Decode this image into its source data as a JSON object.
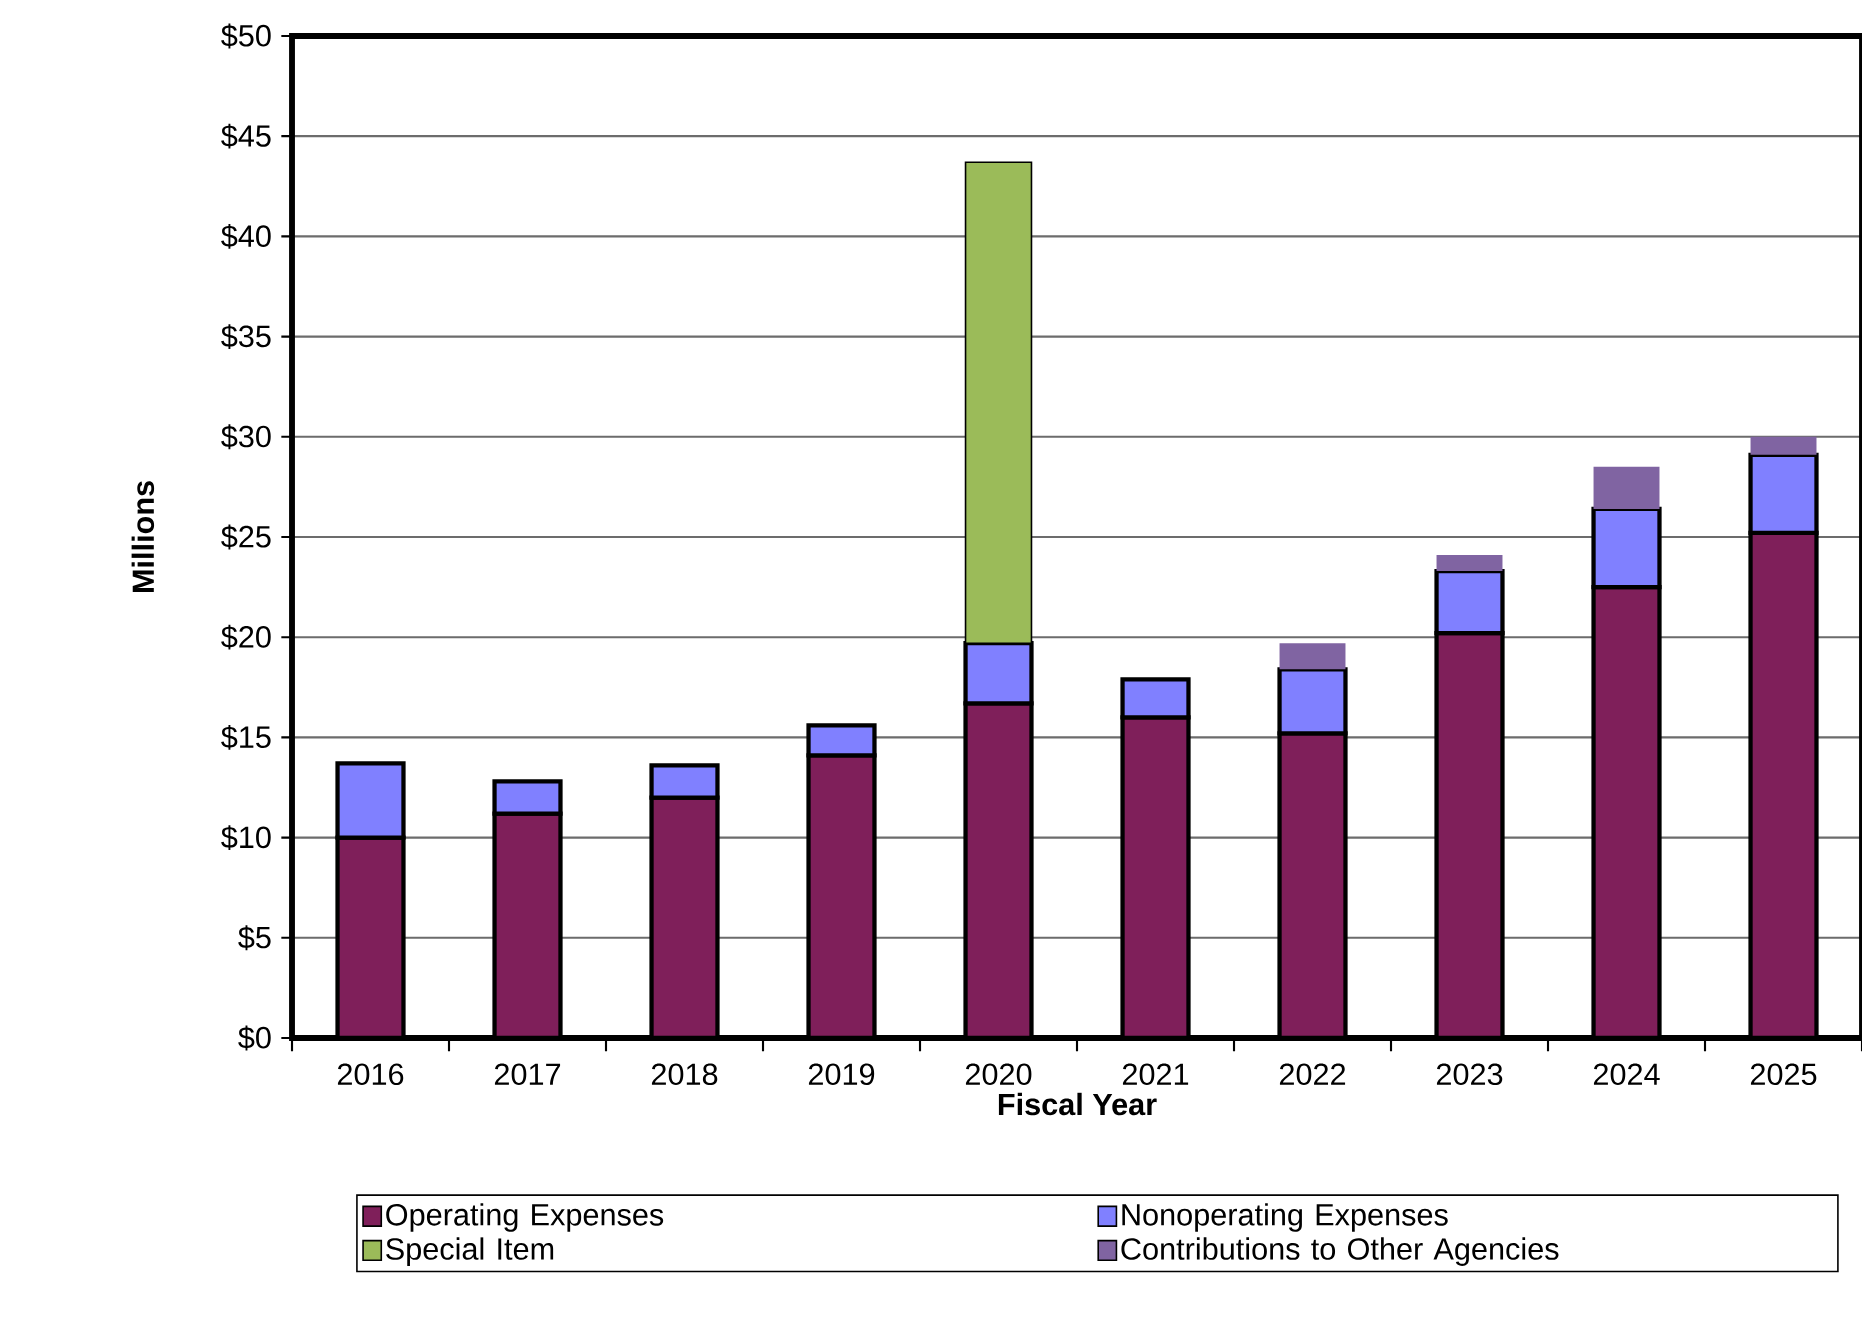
{
  "chart_data": {
    "type": "bar",
    "stacked": true,
    "xlabel": "Fiscal Year",
    "ylabel": "Millions",
    "categories": [
      "2016",
      "2017",
      "2018",
      "2019",
      "2020",
      "2021",
      "2022",
      "2023",
      "2024",
      "2025"
    ],
    "series": [
      {
        "name": "Operating Expenses",
        "color": "#7f1f5a",
        "values": [
          10.0,
          11.2,
          12.0,
          14.1,
          16.7,
          16.0,
          15.2,
          20.2,
          22.5,
          25.2
        ]
      },
      {
        "name": "Nonoperating Expenses",
        "color": "#8080ff",
        "values": [
          3.7,
          1.6,
          1.6,
          1.5,
          3.0,
          1.9,
          3.2,
          3.1,
          3.9,
          3.9
        ]
      },
      {
        "name": "Special Item",
        "color": "#9bbb59",
        "values": [
          null,
          null,
          null,
          null,
          24.0,
          null,
          null,
          null,
          null,
          null
        ]
      },
      {
        "name": "Contributions to Other Agencies",
        "color": "#8064a2",
        "values": [
          null,
          null,
          null,
          null,
          null,
          null,
          1.3,
          0.8,
          2.1,
          0.9
        ]
      }
    ],
    "ylim": [
      0,
      50
    ],
    "yticks": [
      {
        "value": 0,
        "label": "$0"
      },
      {
        "value": 5,
        "label": "$5"
      },
      {
        "value": 10,
        "label": "$10"
      },
      {
        "value": 15,
        "label": "$15"
      },
      {
        "value": 20,
        "label": "$20"
      },
      {
        "value": 25,
        "label": "$25"
      },
      {
        "value": 30,
        "label": "$30"
      },
      {
        "value": 35,
        "label": "$35"
      },
      {
        "value": 40,
        "label": "$40"
      },
      {
        "value": 45,
        "label": "$45"
      },
      {
        "value": 50,
        "label": "$50"
      }
    ],
    "grid": "y",
    "legend": "bottom"
  }
}
